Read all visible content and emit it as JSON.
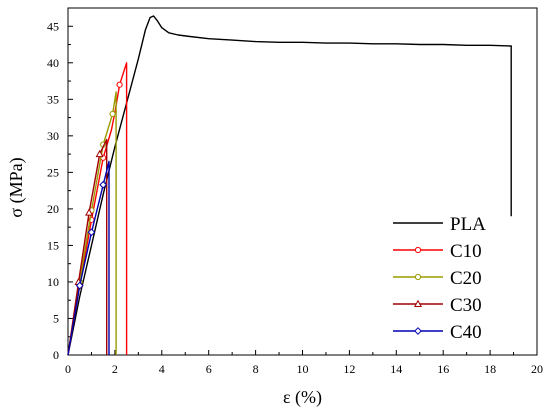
{
  "chart_data": {
    "type": "line",
    "xlabel": "ε (%)",
    "ylabel": "σ (MPa)",
    "xlim": [
      0,
      20
    ],
    "ylim": [
      0,
      47.5
    ],
    "xticks": [
      0,
      2,
      4,
      6,
      8,
      10,
      12,
      14,
      16,
      18,
      20
    ],
    "yticks": [
      0,
      5,
      10,
      15,
      20,
      25,
      30,
      35,
      40,
      45
    ],
    "grid": false,
    "legend_position": "bottom-right",
    "series": [
      {
        "name": "PLA",
        "color": "#000000",
        "marker": "none",
        "x": [
          0,
          0.5,
          1.0,
          1.5,
          2.0,
          2.5,
          3.0,
          3.3,
          3.5,
          3.65,
          3.8,
          4.0,
          4.3,
          4.7,
          5.2,
          6.0,
          7.0,
          8.0,
          9.0,
          10.0,
          11.0,
          12.0,
          13.0,
          14.0,
          15.0,
          16.0,
          17.0,
          18.0,
          18.9,
          18.9
        ],
        "y": [
          0,
          8,
          15,
          22,
          28.5,
          34.5,
          40.5,
          44.5,
          46.2,
          46.4,
          45.8,
          44.8,
          44.1,
          43.8,
          43.6,
          43.3,
          43.1,
          42.9,
          42.8,
          42.8,
          42.7,
          42.7,
          42.6,
          42.6,
          42.5,
          42.5,
          42.4,
          42.4,
          42.3,
          19
        ]
      },
      {
        "name": "C10",
        "color": "#ff0000",
        "marker": "circle",
        "x": [
          0,
          0.5,
          1.0,
          1.5,
          1.85,
          2.0,
          2.2,
          2.5,
          2.5
        ],
        "y": [
          0,
          9.5,
          18.5,
          27,
          30.8,
          33.2,
          37,
          40,
          0
        ],
        "marker_x": [
          0.5,
          1.0,
          1.5,
          2.2
        ],
        "marker_y": [
          9.5,
          18.5,
          27,
          37
        ]
      },
      {
        "name": "C20",
        "color": "#9a9a00",
        "marker": "circle",
        "x": [
          0,
          0.5,
          1.0,
          1.5,
          1.9,
          2.05,
          2.05
        ],
        "y": [
          0,
          10,
          19.8,
          28.8,
          33,
          36,
          0
        ],
        "marker_x": [
          0.5,
          1.0,
          1.5,
          1.9
        ],
        "marker_y": [
          10,
          19.8,
          28.8,
          33
        ]
      },
      {
        "name": "C30",
        "color": "#a00000",
        "marker": "triangle",
        "x": [
          0,
          0.45,
          0.9,
          1.35,
          1.65,
          1.65
        ],
        "y": [
          0,
          10,
          19.5,
          27.5,
          29.5,
          0
        ],
        "marker_x": [
          0.45,
          0.9,
          1.35
        ],
        "marker_y": [
          10,
          19.5,
          27.5
        ]
      },
      {
        "name": "C40",
        "color": "#0000b0",
        "marker": "diamond",
        "x": [
          0,
          0.5,
          1.0,
          1.5,
          1.75,
          1.75
        ],
        "y": [
          0,
          9.5,
          16.8,
          23.3,
          26.5,
          0
        ],
        "marker_x": [
          0.5,
          1.0,
          1.5
        ],
        "marker_y": [
          9.5,
          16.8,
          23.3
        ]
      }
    ]
  }
}
